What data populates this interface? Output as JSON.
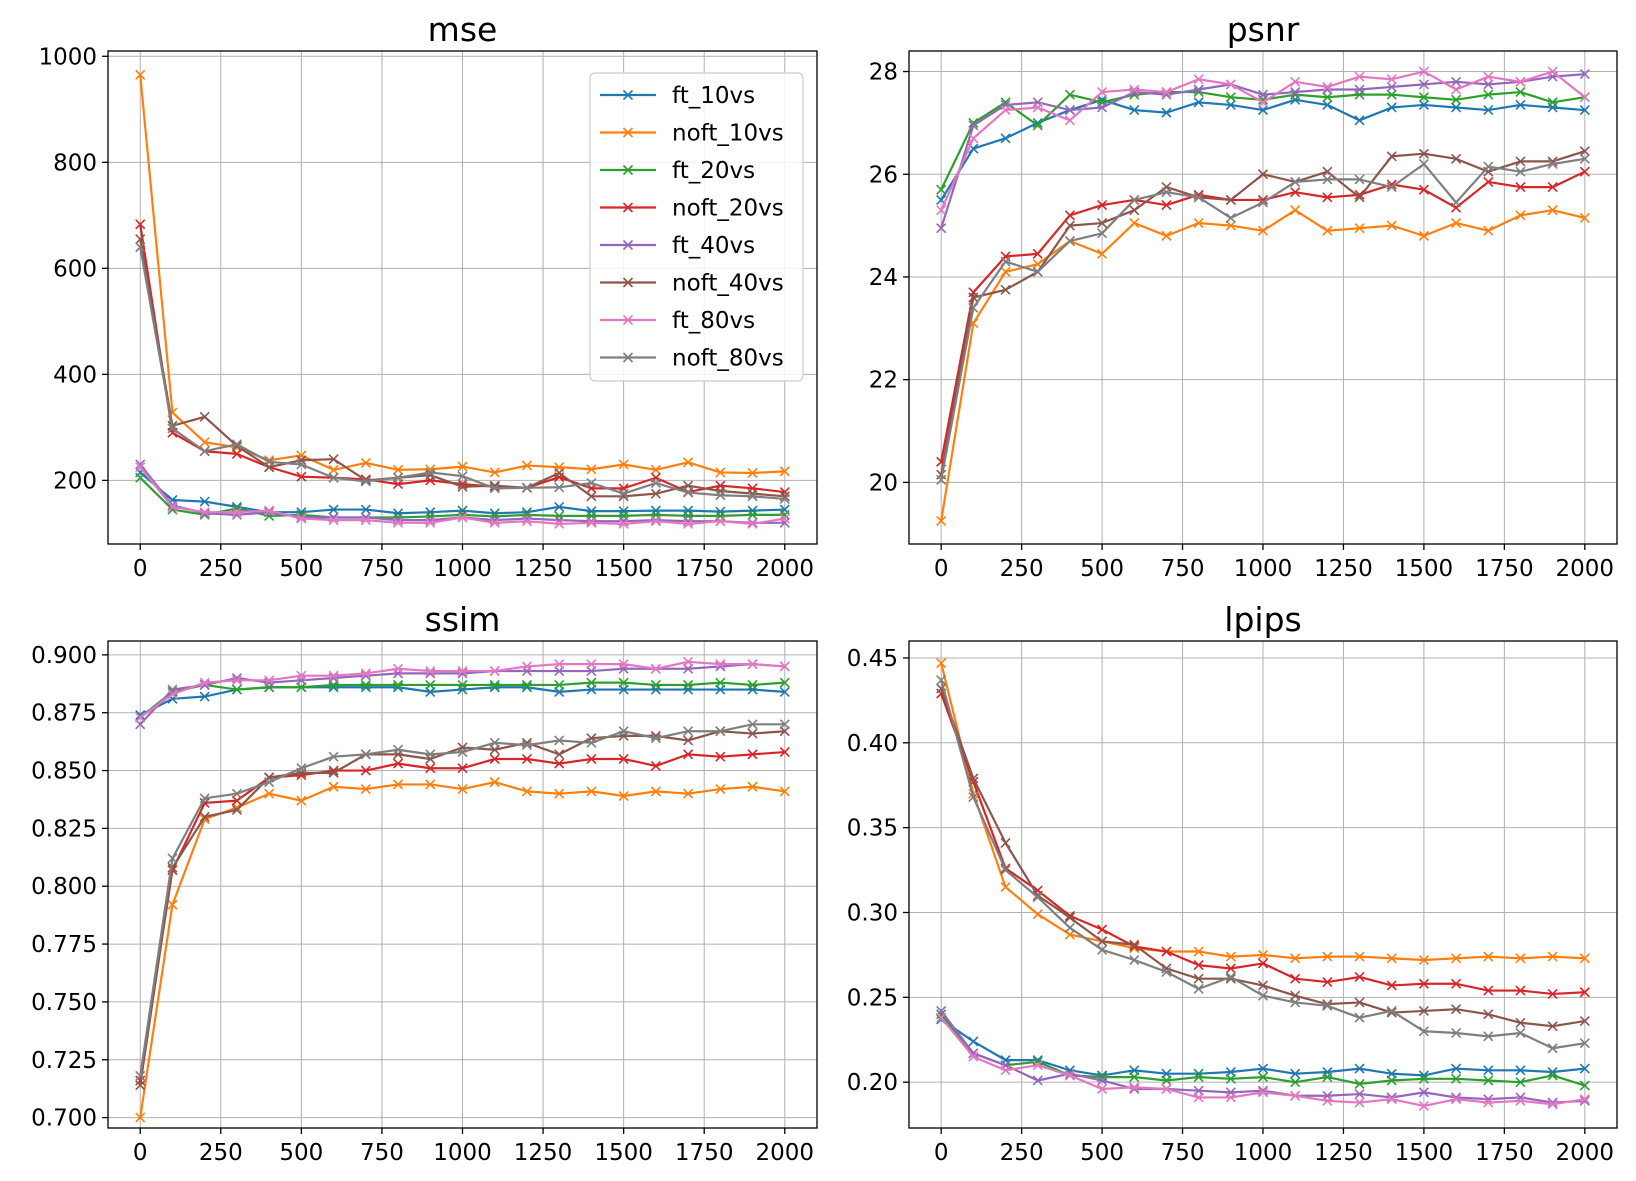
{
  "colors": {
    "ft_10vs": "#1f77b4",
    "noft_10vs": "#ff7f0e",
    "ft_20vs": "#2ca02c",
    "noft_20vs": "#d62728",
    "ft_40vs": "#9467bd",
    "noft_40vs": "#8c564b",
    "ft_80vs": "#e377c2",
    "noft_80vs": "#7f7f7f"
  },
  "chart_data": [
    {
      "type": "line",
      "title": "mse",
      "marker": "x",
      "grid": true,
      "legend": "top-right",
      "xlim": [
        -100,
        2100
      ],
      "ylim": [
        80,
        1010
      ],
      "xticks": [
        0,
        250,
        500,
        750,
        1000,
        1250,
        1500,
        1750,
        2000
      ],
      "yticks": [
        200,
        400,
        600,
        800,
        1000
      ],
      "x": [
        0,
        100,
        200,
        300,
        400,
        500,
        600,
        700,
        800,
        900,
        1000,
        1100,
        1200,
        1300,
        1400,
        1500,
        1600,
        1700,
        1800,
        1900,
        2000
      ],
      "series": [
        {
          "name": "ft_10vs",
          "values": [
            215,
            163,
            160,
            150,
            140,
            140,
            145,
            145,
            138,
            140,
            143,
            138,
            140,
            150,
            142,
            142,
            143,
            143,
            141,
            143,
            145
          ]
        },
        {
          "name": "noft_10vs",
          "values": [
            965,
            328,
            272,
            262,
            238,
            247,
            220,
            233,
            220,
            221,
            226,
            215,
            228,
            225,
            221,
            230,
            220,
            234,
            215,
            214,
            217
          ]
        },
        {
          "name": "ft_20vs",
          "values": [
            205,
            145,
            135,
            147,
            133,
            135,
            130,
            130,
            130,
            132,
            135,
            132,
            135,
            133,
            133,
            133,
            135,
            133,
            133,
            135,
            135
          ]
        },
        {
          "name": "noft_20vs",
          "values": [
            683,
            290,
            255,
            250,
            225,
            207,
            205,
            202,
            193,
            200,
            193,
            188,
            186,
            206,
            185,
            185,
            205,
            178,
            190,
            185,
            178
          ]
        },
        {
          "name": "ft_40vs",
          "values": [
            230,
            153,
            138,
            135,
            140,
            130,
            130,
            130,
            125,
            125,
            130,
            125,
            128,
            125,
            123,
            123,
            125,
            123,
            123,
            120,
            120
          ]
        },
        {
          "name": "noft_40vs",
          "values": [
            655,
            303,
            320,
            265,
            225,
            238,
            240,
            200,
            205,
            210,
            188,
            190,
            186,
            214,
            170,
            170,
            175,
            190,
            180,
            175,
            170
          ]
        },
        {
          "name": "ft_80vs",
          "values": [
            225,
            150,
            140,
            140,
            143,
            128,
            125,
            125,
            120,
            120,
            130,
            120,
            123,
            118,
            120,
            118,
            123,
            118,
            123,
            118,
            128
          ]
        },
        {
          "name": "noft_80vs",
          "values": [
            640,
            298,
            255,
            268,
            235,
            230,
            205,
            198,
            205,
            215,
            208,
            185,
            186,
            187,
            195,
            175,
            195,
            177,
            172,
            170,
            165
          ]
        }
      ]
    },
    {
      "type": "line",
      "title": "psnr",
      "marker": "x",
      "grid": true,
      "xlim": [
        -100,
        2100
      ],
      "ylim": [
        18.8,
        28.4
      ],
      "xticks": [
        0,
        250,
        500,
        750,
        1000,
        1250,
        1500,
        1750,
        2000
      ],
      "yticks": [
        20,
        22,
        24,
        26,
        28
      ],
      "x": [
        0,
        100,
        200,
        300,
        400,
        500,
        600,
        700,
        800,
        900,
        1000,
        1100,
        1200,
        1300,
        1400,
        1500,
        1600,
        1700,
        1800,
        1900,
        2000
      ],
      "series": [
        {
          "name": "ft_10vs",
          "values": [
            25.5,
            26.5,
            26.7,
            27.0,
            27.25,
            27.45,
            27.25,
            27.2,
            27.4,
            27.35,
            27.25,
            27.45,
            27.35,
            27.05,
            27.3,
            27.35,
            27.3,
            27.25,
            27.35,
            27.3,
            27.25
          ]
        },
        {
          "name": "noft_10vs",
          "values": [
            19.25,
            23.1,
            24.1,
            24.25,
            24.7,
            24.45,
            25.05,
            24.8,
            25.05,
            25.0,
            24.9,
            25.3,
            24.9,
            24.95,
            25.0,
            24.8,
            25.05,
            24.9,
            25.2,
            25.3,
            25.15
          ]
        },
        {
          "name": "ft_20vs",
          "values": [
            25.7,
            27.0,
            27.4,
            26.95,
            27.55,
            27.4,
            27.55,
            27.6,
            27.6,
            27.5,
            27.45,
            27.55,
            27.5,
            27.55,
            27.55,
            27.5,
            27.45,
            27.55,
            27.6,
            27.4,
            27.5
          ]
        },
        {
          "name": "noft_20vs",
          "values": [
            20.4,
            23.7,
            24.4,
            24.45,
            25.2,
            25.4,
            25.5,
            25.4,
            25.6,
            25.5,
            25.5,
            25.65,
            25.55,
            25.6,
            25.8,
            25.7,
            25.35,
            25.85,
            25.75,
            25.75,
            26.05
          ]
        },
        {
          "name": "ft_40vs",
          "values": [
            24.95,
            26.95,
            27.35,
            27.4,
            27.25,
            27.3,
            27.6,
            27.55,
            27.65,
            27.75,
            27.55,
            27.6,
            27.65,
            27.65,
            27.7,
            27.75,
            27.8,
            27.75,
            27.8,
            27.9,
            27.95
          ]
        },
        {
          "name": "noft_40vs",
          "values": [
            20.15,
            23.6,
            23.75,
            24.1,
            25.0,
            25.05,
            25.3,
            25.75,
            25.55,
            25.5,
            26.0,
            25.85,
            26.05,
            25.55,
            26.35,
            26.4,
            26.3,
            26.05,
            26.25,
            26.25,
            26.45
          ]
        },
        {
          "name": "ft_80vs",
          "values": [
            25.3,
            26.7,
            27.25,
            27.3,
            27.05,
            27.6,
            27.65,
            27.6,
            27.85,
            27.75,
            27.4,
            27.8,
            27.7,
            27.9,
            27.85,
            28.0,
            27.65,
            27.9,
            27.8,
            28.0,
            27.5
          ]
        },
        {
          "name": "noft_80vs",
          "values": [
            20.05,
            23.4,
            24.3,
            24.1,
            24.7,
            24.85,
            25.5,
            25.65,
            25.55,
            25.15,
            25.45,
            25.85,
            25.9,
            25.9,
            25.75,
            26.2,
            25.45,
            26.15,
            26.05,
            26.2,
            26.3
          ]
        }
      ]
    },
    {
      "type": "line",
      "title": "ssim",
      "marker": "x",
      "grid": true,
      "xlim": [
        -100,
        2100
      ],
      "ylim": [
        0.6955,
        0.906
      ],
      "xticks": [
        0,
        250,
        500,
        750,
        1000,
        1250,
        1500,
        1750,
        2000
      ],
      "yticks": [
        0.7,
        0.725,
        0.75,
        0.775,
        0.8,
        0.825,
        0.85,
        0.875,
        0.9
      ],
      "x": [
        0,
        100,
        200,
        300,
        400,
        500,
        600,
        700,
        800,
        900,
        1000,
        1100,
        1200,
        1300,
        1400,
        1500,
        1600,
        1700,
        1800,
        1900,
        2000
      ],
      "series": [
        {
          "name": "ft_10vs",
          "values": [
            0.874,
            0.881,
            0.882,
            0.885,
            0.886,
            0.886,
            0.886,
            0.886,
            0.886,
            0.884,
            0.885,
            0.886,
            0.886,
            0.884,
            0.885,
            0.885,
            0.885,
            0.885,
            0.885,
            0.885,
            0.884
          ]
        },
        {
          "name": "noft_10vs",
          "values": [
            0.7,
            0.792,
            0.829,
            0.834,
            0.84,
            0.837,
            0.843,
            0.842,
            0.844,
            0.844,
            0.842,
            0.845,
            0.841,
            0.84,
            0.841,
            0.839,
            0.841,
            0.84,
            0.842,
            0.843,
            0.841
          ]
        },
        {
          "name": "ft_20vs",
          "values": [
            0.873,
            0.884,
            0.887,
            0.885,
            0.886,
            0.886,
            0.887,
            0.887,
            0.887,
            0.887,
            0.887,
            0.887,
            0.887,
            0.887,
            0.888,
            0.888,
            0.887,
            0.887,
            0.888,
            0.887,
            0.888
          ]
        },
        {
          "name": "noft_20vs",
          "values": [
            0.716,
            0.807,
            0.836,
            0.837,
            0.847,
            0.848,
            0.85,
            0.85,
            0.853,
            0.851,
            0.851,
            0.855,
            0.855,
            0.853,
            0.855,
            0.855,
            0.852,
            0.857,
            0.856,
            0.857,
            0.858
          ]
        },
        {
          "name": "ft_40vs",
          "values": [
            0.87,
            0.885,
            0.887,
            0.89,
            0.888,
            0.889,
            0.89,
            0.891,
            0.892,
            0.892,
            0.892,
            0.893,
            0.893,
            0.893,
            0.893,
            0.894,
            0.894,
            0.894,
            0.895,
            0.896,
            0.895
          ]
        },
        {
          "name": "noft_40vs",
          "values": [
            0.714,
            0.808,
            0.83,
            0.833,
            0.847,
            0.849,
            0.849,
            0.857,
            0.857,
            0.855,
            0.86,
            0.859,
            0.862,
            0.857,
            0.864,
            0.865,
            0.865,
            0.863,
            0.867,
            0.866,
            0.867
          ]
        },
        {
          "name": "ft_80vs",
          "values": [
            0.873,
            0.883,
            0.888,
            0.889,
            0.889,
            0.891,
            0.891,
            0.892,
            0.894,
            0.893,
            0.893,
            0.893,
            0.895,
            0.896,
            0.896,
            0.896,
            0.894,
            0.897,
            0.896,
            0.896,
            0.895
          ]
        },
        {
          "name": "noft_80vs",
          "values": [
            0.718,
            0.812,
            0.838,
            0.84,
            0.845,
            0.851,
            0.856,
            0.857,
            0.859,
            0.857,
            0.858,
            0.862,
            0.861,
            0.863,
            0.862,
            0.867,
            0.864,
            0.867,
            0.867,
            0.87,
            0.87
          ]
        }
      ]
    },
    {
      "type": "line",
      "title": "lpips",
      "marker": "x",
      "grid": true,
      "xlim": [
        -100,
        2100
      ],
      "ylim": [
        0.173,
        0.46
      ],
      "xticks": [
        0,
        250,
        500,
        750,
        1000,
        1250,
        1500,
        1750,
        2000
      ],
      "yticks": [
        0.2,
        0.25,
        0.3,
        0.35,
        0.4,
        0.45
      ],
      "x": [
        0,
        100,
        200,
        300,
        400,
        500,
        600,
        700,
        800,
        900,
        1000,
        1100,
        1200,
        1300,
        1400,
        1500,
        1600,
        1700,
        1800,
        1900,
        2000
      ],
      "series": [
        {
          "name": "ft_10vs",
          "values": [
            0.237,
            0.224,
            0.213,
            0.213,
            0.207,
            0.204,
            0.207,
            0.205,
            0.205,
            0.206,
            0.208,
            0.205,
            0.206,
            0.208,
            0.205,
            0.204,
            0.208,
            0.207,
            0.207,
            0.206,
            0.208
          ]
        },
        {
          "name": "noft_10vs",
          "values": [
            0.447,
            0.37,
            0.315,
            0.299,
            0.287,
            0.283,
            0.279,
            0.277,
            0.277,
            0.274,
            0.275,
            0.273,
            0.274,
            0.274,
            0.273,
            0.272,
            0.273,
            0.274,
            0.273,
            0.274,
            0.273
          ]
        },
        {
          "name": "ft_20vs",
          "values": [
            0.24,
            0.217,
            0.21,
            0.212,
            0.204,
            0.203,
            0.203,
            0.201,
            0.203,
            0.202,
            0.203,
            0.2,
            0.203,
            0.199,
            0.201,
            0.202,
            0.202,
            0.201,
            0.2,
            0.204,
            0.198
          ]
        },
        {
          "name": "noft_20vs",
          "values": [
            0.429,
            0.377,
            0.326,
            0.313,
            0.298,
            0.29,
            0.28,
            0.277,
            0.269,
            0.267,
            0.27,
            0.261,
            0.259,
            0.262,
            0.257,
            0.258,
            0.258,
            0.254,
            0.254,
            0.252,
            0.253
          ]
        },
        {
          "name": "ft_40vs",
          "values": [
            0.242,
            0.217,
            0.21,
            0.201,
            0.205,
            0.201,
            0.196,
            0.196,
            0.195,
            0.194,
            0.195,
            0.192,
            0.192,
            0.193,
            0.191,
            0.194,
            0.191,
            0.19,
            0.191,
            0.188,
            0.189
          ]
        },
        {
          "name": "noft_40vs",
          "values": [
            0.432,
            0.379,
            0.341,
            0.31,
            0.297,
            0.283,
            0.281,
            0.267,
            0.261,
            0.261,
            0.257,
            0.251,
            0.246,
            0.247,
            0.241,
            0.242,
            0.243,
            0.24,
            0.235,
            0.233,
            0.236
          ]
        },
        {
          "name": "ft_80vs",
          "values": [
            0.238,
            0.215,
            0.207,
            0.21,
            0.204,
            0.196,
            0.197,
            0.196,
            0.191,
            0.191,
            0.194,
            0.192,
            0.189,
            0.188,
            0.19,
            0.186,
            0.19,
            0.188,
            0.189,
            0.187,
            0.19
          ]
        },
        {
          "name": "noft_80vs",
          "values": [
            0.437,
            0.368,
            0.325,
            0.309,
            0.291,
            0.278,
            0.272,
            0.265,
            0.255,
            0.262,
            0.251,
            0.247,
            0.245,
            0.238,
            0.242,
            0.23,
            0.229,
            0.227,
            0.229,
            0.22,
            0.223
          ]
        }
      ]
    }
  ]
}
